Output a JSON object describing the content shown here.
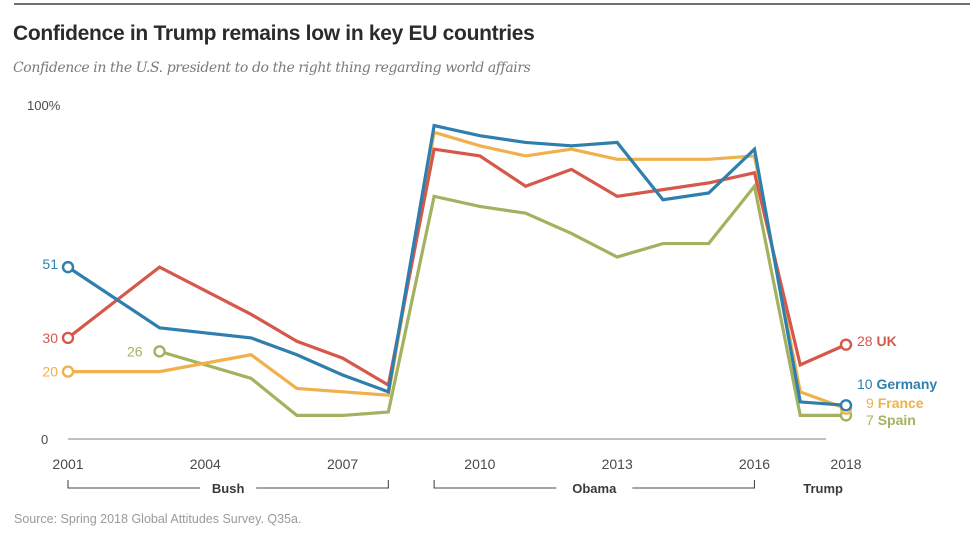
{
  "chart_data": {
    "type": "line",
    "title": "Confidence in Trump remains low in key EU countries",
    "subtitle": "Confidence in the U.S. president to do the right thing regarding world affairs",
    "source": "Source: Spring 2018 Global Attitudes Survey. Q35a.",
    "xlabel": "",
    "ylabel": "",
    "ylim": [
      0,
      100
    ],
    "xlim": [
      2001,
      2018
    ],
    "y_ticks": [
      {
        "value": 0,
        "label": "0"
      },
      {
        "value": 100,
        "label": "100%"
      }
    ],
    "x_ticks": [
      {
        "value": 2001,
        "label": "2001"
      },
      {
        "value": 2004,
        "label": "2004"
      },
      {
        "value": 2007,
        "label": "2007"
      },
      {
        "value": 2010,
        "label": "2010"
      },
      {
        "value": 2013,
        "label": "2013"
      },
      {
        "value": 2016,
        "label": "2016"
      },
      {
        "value": 2018,
        "label": "2018"
      }
    ],
    "eras": [
      {
        "label": "Bush",
        "start": 2001,
        "end": 2008
      },
      {
        "label": "Obama",
        "start": 2009,
        "end": 2016
      },
      {
        "label": "Trump",
        "start": 2017,
        "end": 2018
      }
    ],
    "grid": false,
    "legend": "direct-labels-right",
    "series": [
      {
        "name": "UK",
        "color": "#d5584a",
        "x": [
          2001,
          2003,
          2005,
          2006,
          2007,
          2008,
          2009,
          2010,
          2011,
          2012,
          2013,
          2014,
          2015,
          2016,
          2017,
          2018
        ],
        "values": [
          30,
          51,
          37,
          29,
          24,
          16,
          86,
          84,
          75,
          80,
          72,
          74,
          76,
          79,
          22,
          28
        ],
        "start_label": "30",
        "end_value_label": "28",
        "end_name_label": "UK"
      },
      {
        "name": "Germany",
        "color": "#2e7fae",
        "x": [
          2001,
          2003,
          2005,
          2006,
          2007,
          2008,
          2009,
          2010,
          2011,
          2012,
          2013,
          2014,
          2015,
          2016,
          2017,
          2018
        ],
        "values": [
          51,
          33,
          30,
          25,
          19,
          14,
          93,
          90,
          88,
          87,
          88,
          71,
          73,
          86,
          11,
          10
        ],
        "start_label": "51",
        "end_value_label": "10",
        "end_name_label": "Germany"
      },
      {
        "name": "France",
        "color": "#f0b04a",
        "x": [
          2001,
          2003,
          2005,
          2006,
          2007,
          2008,
          2009,
          2010,
          2011,
          2012,
          2013,
          2014,
          2015,
          2016,
          2017,
          2018
        ],
        "values": [
          20,
          20,
          25,
          15,
          14,
          13,
          91,
          87,
          84,
          86,
          83,
          83,
          83,
          84,
          14,
          9
        ],
        "start_label": "20",
        "end_value_label": "9",
        "end_name_label": "France"
      },
      {
        "name": "Spain",
        "color": "#a2b25e",
        "x": [
          2003,
          2005,
          2006,
          2007,
          2008,
          2009,
          2010,
          2011,
          2012,
          2013,
          2014,
          2015,
          2016,
          2017,
          2018
        ],
        "values": [
          26,
          18,
          7,
          7,
          8,
          72,
          69,
          67,
          61,
          54,
          58,
          58,
          75,
          7,
          7
        ],
        "start_label": "26",
        "end_value_label": "7",
        "end_name_label": "Spain"
      }
    ]
  }
}
